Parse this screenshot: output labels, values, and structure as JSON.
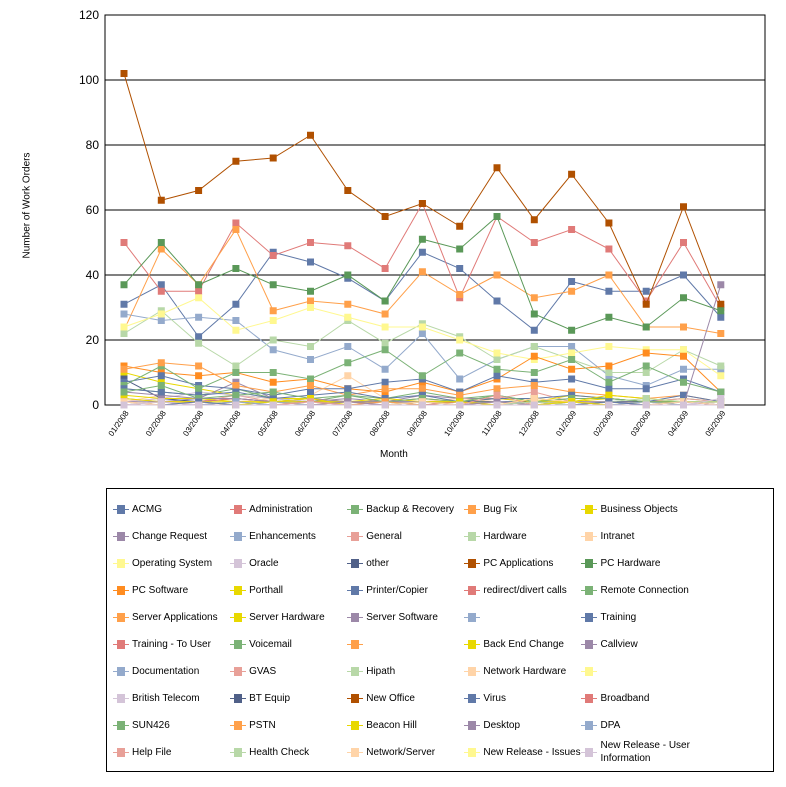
{
  "chart_data": {
    "type": "line",
    "title": "",
    "xlabel": "Month",
    "ylabel": "Number of Work Orders",
    "ylim": [
      0,
      120
    ],
    "yticks": [
      0,
      20,
      40,
      60,
      80,
      100,
      120
    ],
    "grid": "horizontal",
    "legend_position": "bottom",
    "categories": [
      "01/2008",
      "02/2008",
      "03/2008",
      "04/2008",
      "05/2008",
      "06/2008",
      "07/2008",
      "08/2008",
      "09/2008",
      "10/2008",
      "11/2008",
      "12/2008",
      "01/2009",
      "02/2009",
      "03/2009",
      "04/2009",
      "05/2009"
    ],
    "series": [
      {
        "name": "ACMG",
        "color": "#6079A8",
        "values": [
          31,
          37,
          21,
          31,
          47,
          44,
          39,
          32,
          47,
          42,
          32,
          23,
          38,
          35,
          35,
          40,
          27
        ]
      },
      {
        "name": "Administration",
        "color": "#E07A78",
        "values": [
          50,
          35,
          35,
          56,
          46,
          50,
          49,
          42,
          62,
          33,
          58,
          50,
          54,
          48,
          32,
          50,
          30
        ]
      },
      {
        "name": "Backup & Recovery",
        "color": "#7BB276",
        "values": [
          5,
          4,
          3,
          5,
          2,
          1,
          3,
          2,
          4,
          2,
          3,
          1,
          2,
          2,
          1,
          2,
          1
        ]
      },
      {
        "name": "Bug Fix",
        "color": "#FFA04A",
        "values": [
          23,
          48,
          37,
          54,
          29,
          32,
          31,
          28,
          41,
          34,
          40,
          33,
          35,
          40,
          24,
          24,
          22
        ]
      },
      {
        "name": "Business Objects",
        "color": "#E8D800",
        "values": [
          10,
          7,
          5,
          3,
          2,
          2,
          1,
          1,
          2,
          1,
          1,
          0,
          1,
          2,
          1,
          1,
          0
        ]
      },
      {
        "name": "Change Request",
        "color": "#9C88A8",
        "values": [
          2,
          1,
          2,
          7,
          2,
          1,
          2,
          1,
          3,
          2,
          2,
          1,
          1,
          0,
          0,
          1,
          1
        ]
      },
      {
        "name": "Enhancements",
        "color": "#94AACC",
        "values": [
          28,
          26,
          27,
          26,
          17,
          14,
          18,
          11,
          22,
          8,
          14,
          18,
          18,
          9,
          6,
          11,
          11
        ]
      },
      {
        "name": "General",
        "color": "#E8A098",
        "values": [
          1,
          2,
          1,
          3,
          1,
          2,
          1,
          1,
          2,
          1,
          2,
          4,
          1,
          1,
          1,
          2,
          1
        ]
      },
      {
        "name": "Hardware",
        "color": "#B8D8A8",
        "values": [
          22,
          29,
          19,
          12,
          20,
          18,
          26,
          19,
          25,
          21,
          14,
          18,
          14,
          10,
          10,
          17,
          12
        ]
      },
      {
        "name": "Intranet",
        "color": "#FFD4A8",
        "values": [
          1,
          3,
          2,
          1,
          2,
          3,
          9,
          2,
          1,
          2,
          1,
          0,
          1,
          1,
          0,
          1,
          0
        ]
      },
      {
        "name": "Operating System",
        "color": "#FFF890",
        "values": [
          24,
          28,
          33,
          23,
          26,
          30,
          27,
          24,
          24,
          20,
          16,
          14,
          16,
          18,
          17,
          17,
          9
        ]
      },
      {
        "name": "Oracle",
        "color": "#D4C4D8",
        "values": [
          1,
          2,
          4,
          3,
          2,
          1,
          1,
          0,
          1,
          1,
          0,
          1,
          0,
          1,
          0,
          0,
          1
        ]
      },
      {
        "name": "other",
        "color": "#506088",
        "values": [
          8,
          2,
          1,
          2,
          1,
          1,
          1,
          1,
          1,
          1,
          1,
          1,
          0,
          1,
          1,
          1,
          0
        ]
      },
      {
        "name": "PC Applications",
        "color": "#B05000",
        "values": [
          102,
          63,
          66,
          75,
          76,
          83,
          66,
          58,
          62,
          55,
          73,
          57,
          71,
          56,
          31,
          61,
          31
        ]
      },
      {
        "name": "PC Hardware",
        "color": "#5A9858",
        "values": [
          37,
          50,
          37,
          42,
          37,
          35,
          40,
          32,
          51,
          48,
          58,
          28,
          23,
          27,
          24,
          33,
          29
        ]
      },
      {
        "name": "PC Software",
        "color": "#FF8C20",
        "values": [
          12,
          10,
          9,
          10,
          7,
          8,
          5,
          4,
          7,
          4,
          8,
          15,
          11,
          12,
          16,
          15,
          4
        ]
      },
      {
        "name": "Porthall",
        "color": "#E8D800",
        "values": [
          3,
          2,
          2,
          1,
          1,
          1,
          1,
          1,
          0,
          1,
          0,
          1,
          1,
          0,
          1,
          0,
          0
        ]
      },
      {
        "name": "Printer/Copier",
        "color": "#6079A8",
        "values": [
          7,
          9,
          6,
          5,
          3,
          5,
          5,
          7,
          8,
          4,
          9,
          7,
          8,
          5,
          5,
          8,
          4
        ]
      },
      {
        "name": "redirect/divert calls",
        "color": "#E07A78",
        "values": [
          0,
          1,
          1,
          2,
          1,
          0,
          1,
          0,
          1,
          0,
          0,
          1,
          0,
          1,
          0,
          1,
          0
        ]
      },
      {
        "name": "Remote Connection",
        "color": "#7BB276",
        "values": [
          6,
          12,
          5,
          10,
          10,
          8,
          13,
          17,
          9,
          16,
          11,
          10,
          14,
          7,
          12,
          7,
          4
        ]
      },
      {
        "name": "Server Applications",
        "color": "#FFA04A",
        "values": [
          11,
          13,
          12,
          6,
          4,
          6,
          3,
          5,
          5,
          3,
          5,
          6,
          4,
          3,
          2,
          3,
          1
        ]
      },
      {
        "name": "Server Hardware",
        "color": "#E8D800",
        "values": [
          2,
          1,
          1,
          1,
          1,
          0,
          1,
          2,
          1,
          1,
          2,
          1,
          3,
          2,
          1,
          1,
          1
        ]
      },
      {
        "name": "Server Software",
        "color": "#9C88A8",
        "values": [
          4,
          3,
          2,
          2,
          1,
          2,
          1,
          1,
          1,
          0,
          1,
          0,
          1,
          1,
          0,
          1,
          0
        ]
      },
      {
        "name": "",
        "color": "#94AACC",
        "values": [
          0,
          1,
          0,
          0,
          1,
          0,
          0,
          1,
          0,
          0,
          0,
          1,
          0,
          0,
          1,
          0,
          0
        ]
      },
      {
        "name": "Training",
        "color": "#6079A8",
        "values": [
          5,
          4,
          3,
          4,
          2,
          3,
          4,
          2,
          3,
          1,
          2,
          2,
          3,
          2,
          1,
          3,
          1
        ]
      },
      {
        "name": "Training - To User",
        "color": "#E07A78",
        "values": [
          0,
          0,
          1,
          0,
          0,
          1,
          0,
          0,
          0,
          1,
          0,
          0,
          0,
          0,
          0,
          0,
          0
        ]
      },
      {
        "name": "Voicemail",
        "color": "#7BB276",
        "values": [
          4,
          6,
          2,
          3,
          4,
          2,
          3,
          1,
          2,
          1,
          3,
          1,
          2,
          2,
          1,
          1,
          1
        ]
      },
      {
        "name": "",
        "color": "#FFA04A",
        "values": [
          1,
          0,
          0,
          1,
          0,
          0,
          0,
          1,
          0,
          0,
          0,
          0,
          1,
          0,
          0,
          0,
          0
        ]
      },
      {
        "name": "Back End Change",
        "color": "#E8D800",
        "values": [
          0,
          1,
          1,
          0,
          1,
          2,
          0,
          0,
          1,
          1,
          0,
          2,
          1,
          3,
          2,
          1,
          1
        ]
      },
      {
        "name": "Callview",
        "color": "#9C88A8",
        "values": [
          1,
          1,
          0,
          1,
          0,
          0,
          1,
          0,
          0,
          0,
          1,
          0,
          0,
          1,
          0,
          0,
          0
        ]
      },
      {
        "name": "Documentation",
        "color": "#94AACC",
        "values": [
          0,
          0,
          0,
          1,
          0,
          0,
          0,
          0,
          1,
          0,
          0,
          0,
          0,
          0,
          0,
          0,
          0
        ]
      },
      {
        "name": "GVAS",
        "color": "#E8A098",
        "values": [
          0,
          1,
          0,
          0,
          0,
          1,
          0,
          0,
          0,
          0,
          3,
          0,
          0,
          0,
          0,
          0,
          0
        ]
      },
      {
        "name": "Hipath",
        "color": "#B8D8A8",
        "values": [
          0,
          0,
          0,
          0,
          0,
          0,
          0,
          0,
          0,
          0,
          0,
          1,
          0,
          1,
          2,
          1,
          1
        ]
      },
      {
        "name": "Network Hardware",
        "color": "#FFD4A8",
        "values": [
          1,
          0,
          1,
          0,
          0,
          0,
          0,
          0,
          1,
          0,
          0,
          2,
          1,
          0,
          0,
          1,
          0
        ]
      },
      {
        "name": "",
        "color": "#FFF890",
        "values": [
          0,
          0,
          0,
          0,
          0,
          0,
          0,
          0,
          0,
          0,
          0,
          0,
          0,
          0,
          0,
          0,
          0
        ]
      },
      {
        "name": "British Telecom",
        "color": "#D4C4D8",
        "values": [
          0,
          1,
          0,
          0,
          0,
          0,
          0,
          0,
          0,
          0,
          0,
          0,
          0,
          0,
          0,
          0,
          2
        ]
      },
      {
        "name": "BT Equip",
        "color": "#506088",
        "values": [
          0,
          0,
          0,
          0,
          0,
          0,
          0,
          0,
          0,
          0,
          0,
          0,
          0,
          0,
          0,
          0,
          0
        ]
      },
      {
        "name": "New Office",
        "color": "#B05000",
        "values": [
          0,
          0,
          0,
          0,
          0,
          0,
          0,
          0,
          0,
          0,
          0,
          0,
          0,
          0,
          0,
          0,
          0
        ]
      },
      {
        "name": "Virus",
        "color": "#6079A8",
        "values": [
          0,
          0,
          1,
          0,
          0,
          0,
          0,
          0,
          0,
          0,
          0,
          0,
          0,
          1,
          0,
          0,
          0
        ]
      },
      {
        "name": "Broadband",
        "color": "#E07A78",
        "values": [
          0,
          0,
          0,
          0,
          0,
          0,
          0,
          0,
          0,
          0,
          0,
          0,
          0,
          0,
          0,
          0,
          0
        ]
      },
      {
        "name": "SUN426",
        "color": "#7BB276",
        "values": [
          0,
          0,
          0,
          0,
          0,
          0,
          0,
          0,
          0,
          0,
          0,
          0,
          0,
          0,
          0,
          0,
          0
        ]
      },
      {
        "name": "PSTN",
        "color": "#FFA04A",
        "values": [
          0,
          0,
          0,
          0,
          0,
          0,
          0,
          0,
          0,
          0,
          0,
          0,
          0,
          0,
          0,
          0,
          0
        ]
      },
      {
        "name": "Beacon Hill",
        "color": "#E8D800",
        "values": [
          0,
          0,
          0,
          0,
          0,
          0,
          0,
          0,
          0,
          0,
          0,
          0,
          1,
          0,
          0,
          0,
          0
        ]
      },
      {
        "name": "Desktop",
        "color": "#9C88A8",
        "values": [
          0,
          0,
          0,
          0,
          0,
          0,
          0,
          0,
          0,
          0,
          0,
          0,
          0,
          0,
          0,
          0,
          37
        ]
      },
      {
        "name": "DPA",
        "color": "#94AACC",
        "values": [
          0,
          0,
          0,
          0,
          0,
          0,
          0,
          0,
          0,
          0,
          0,
          0,
          0,
          0,
          0,
          0,
          0
        ]
      },
      {
        "name": "Help File",
        "color": "#E8A098",
        "values": [
          0,
          0,
          0,
          0,
          0,
          0,
          0,
          0,
          0,
          0,
          0,
          0,
          0,
          0,
          0,
          0,
          0
        ]
      },
      {
        "name": "Health Check",
        "color": "#B8D8A8",
        "values": [
          0,
          0,
          0,
          0,
          0,
          0,
          0,
          0,
          0,
          0,
          0,
          0,
          0,
          0,
          0,
          0,
          0
        ]
      },
      {
        "name": "Network/Server",
        "color": "#FFD4A8",
        "values": [
          0,
          0,
          0,
          0,
          0,
          0,
          0,
          0,
          0,
          0,
          0,
          0,
          0,
          0,
          0,
          0,
          0
        ]
      },
      {
        "name": "New Release - Issues",
        "color": "#FFF890",
        "values": [
          0,
          0,
          0,
          0,
          0,
          0,
          0,
          0,
          0,
          0,
          0,
          0,
          0,
          0,
          0,
          0,
          0
        ]
      },
      {
        "name": "New Release - User Information",
        "color": "#D4C4D8",
        "values": [
          0,
          0,
          0,
          0,
          0,
          0,
          0,
          0,
          0,
          0,
          0,
          0,
          0,
          0,
          0,
          0,
          0
        ]
      }
    ]
  }
}
